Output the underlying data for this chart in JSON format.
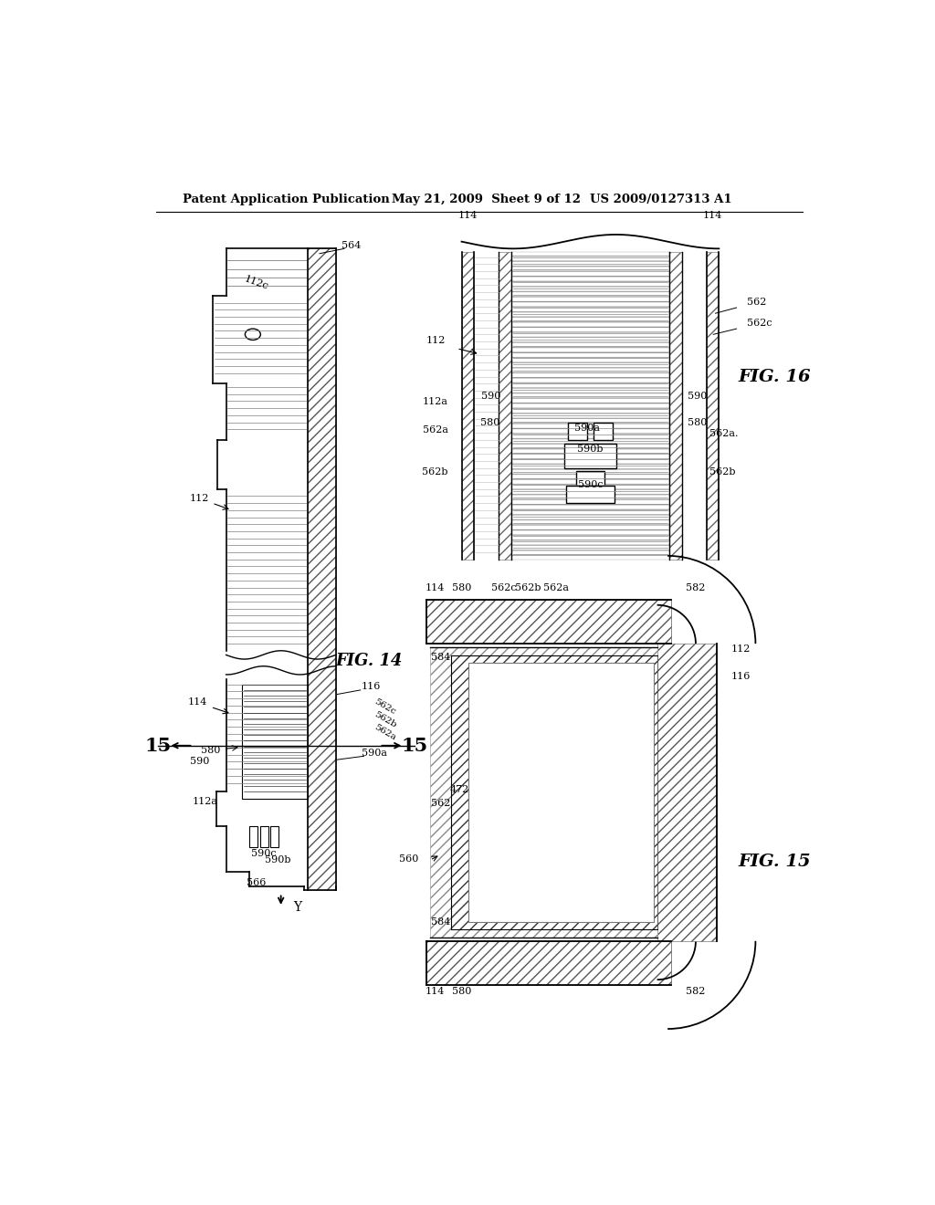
{
  "bg_color": "#ffffff",
  "header_left": "Patent Application Publication",
  "header_mid": "May 21, 2009  Sheet 9 of 12",
  "header_right": "US 2009/0127313 A1",
  "fig14_label": "FIG. 14",
  "fig15_label": "FIG. 15",
  "fig16_label": "FIG. 16"
}
